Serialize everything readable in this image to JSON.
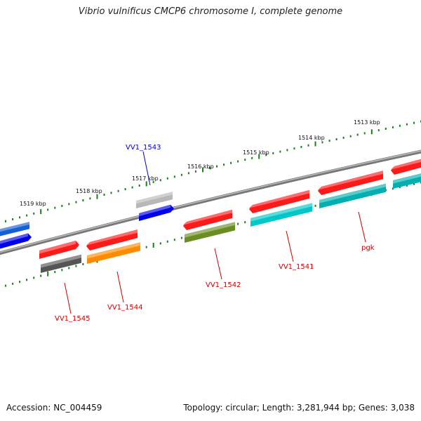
{
  "title": "Vibrio vulnificus CMCP6 chromosome I, complete genome",
  "accession": "Accession: NC_004459",
  "summary": "Topology: circular; Length: 3,281,944 bp; Genes: 3,038",
  "colors": {
    "backbone": "#8a8a8a",
    "tick": "#1e7d1e",
    "label_red": "#cc0000",
    "label_blue": "#0000cc"
  },
  "ruler": {
    "ticks": [
      {
        "text": "1513 kbp"
      },
      {
        "text": "1514 kbp"
      },
      {
        "text": "1515 kbp"
      },
      {
        "text": "1516 kbp"
      },
      {
        "text": "1517 kbp"
      },
      {
        "text": "1518 kbp"
      },
      {
        "text": "1519 kbp"
      }
    ]
  },
  "features": [
    {
      "name": "VV1_1545",
      "color": "#555555",
      "label_color": "#cc0000"
    },
    {
      "name": "VV1_1544",
      "color": "#ff8c00",
      "label_color": "#cc0000"
    },
    {
      "name": "VV1_1543",
      "color": "#b8b8b8",
      "label_color": "#0000cc"
    },
    {
      "name": "VV1_1542",
      "color": "#6b8e23",
      "label_color": "#cc0000"
    },
    {
      "name": "VV1_1541",
      "color": "#00c8c8",
      "label_color": "#cc0000"
    },
    {
      "name": "pgk",
      "color": "#00b0b0",
      "label_color": "#cc0000"
    }
  ]
}
